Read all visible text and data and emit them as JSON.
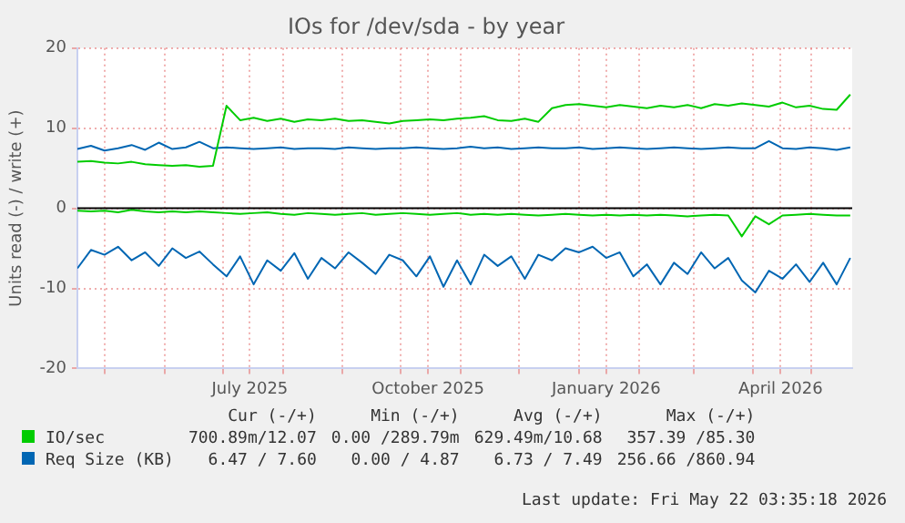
{
  "chart_data": {
    "type": "line",
    "title": "IOs for /dev/sda - by year",
    "ylabel": "Units read (-) / write (+)",
    "x": [
      "2025-04-17",
      "2025-04-24",
      "2025-05-01",
      "2025-05-08",
      "2025-05-15",
      "2025-05-22",
      "2025-05-29",
      "2025-06-05",
      "2025-06-12",
      "2025-06-19",
      "2025-06-26",
      "2025-07-03",
      "2025-07-10",
      "2025-07-17",
      "2025-07-24",
      "2025-07-31",
      "2025-08-07",
      "2025-08-14",
      "2025-08-21",
      "2025-08-28",
      "2025-09-04",
      "2025-09-11",
      "2025-09-18",
      "2025-09-25",
      "2025-10-02",
      "2025-10-09",
      "2025-10-16",
      "2025-10-23",
      "2025-10-30",
      "2025-11-06",
      "2025-11-13",
      "2025-11-20",
      "2025-11-27",
      "2025-12-04",
      "2025-12-11",
      "2025-12-18",
      "2025-12-25",
      "2026-01-01",
      "2026-01-08",
      "2026-01-15",
      "2026-01-22",
      "2026-01-29",
      "2026-02-05",
      "2026-02-12",
      "2026-02-19",
      "2026-02-26",
      "2026-03-05",
      "2026-03-12",
      "2026-03-19",
      "2026-03-26",
      "2026-04-02",
      "2026-04-09",
      "2026-04-16",
      "2026-04-23",
      "2026-04-30",
      "2026-05-07",
      "2026-05-14",
      "2026-05-21"
    ],
    "xlim": [
      "2025-04-17",
      "2026-05-22"
    ],
    "xticks": [
      {
        "value": "2025-05-01",
        "label": null
      },
      {
        "value": "2025-06-01",
        "label": null
      },
      {
        "value": "2025-07-01",
        "label": null
      },
      {
        "value": "2025-07-15",
        "label": "July 2025"
      },
      {
        "value": "2025-08-01",
        "label": null
      },
      {
        "value": "2025-09-01",
        "label": null
      },
      {
        "value": "2025-10-01",
        "label": null
      },
      {
        "value": "2025-10-15",
        "label": "October 2025"
      },
      {
        "value": "2025-11-01",
        "label": null
      },
      {
        "value": "2025-12-01",
        "label": null
      },
      {
        "value": "2026-01-01",
        "label": null
      },
      {
        "value": "2026-01-15",
        "label": "January 2026"
      },
      {
        "value": "2026-02-01",
        "label": null
      },
      {
        "value": "2026-03-01",
        "label": null
      },
      {
        "value": "2026-04-01",
        "label": null
      },
      {
        "value": "2026-04-15",
        "label": "April 2026"
      },
      {
        "value": "2026-05-01",
        "label": null
      }
    ],
    "ylim": [
      -20,
      20
    ],
    "yticks": [
      -20,
      -10,
      0,
      10,
      20
    ],
    "grid": true,
    "legend": "bottom",
    "marker": "none",
    "line_style": "solid",
    "ref_lines": [
      {
        "axis": "y",
        "value": 0,
        "color": "#000000"
      }
    ],
    "series": [
      {
        "name": "IO/sec",
        "color": "#00cc00",
        "values": [
          5.8,
          5.9,
          5.7,
          5.6,
          5.8,
          5.5,
          5.4,
          5.3,
          5.4,
          5.2,
          5.3,
          12.8,
          11.0,
          11.3,
          10.9,
          11.2,
          10.8,
          11.1,
          11.0,
          11.2,
          10.9,
          11.0,
          10.8,
          10.6,
          10.9,
          11.0,
          11.1,
          11.0,
          11.2,
          11.3,
          11.5,
          11.0,
          10.9,
          11.2,
          10.8,
          12.5,
          12.9,
          13.0,
          12.8,
          12.6,
          12.9,
          12.7,
          12.5,
          12.8,
          12.6,
          12.9,
          12.5,
          13.0,
          12.8,
          13.1,
          12.9,
          12.7,
          13.2,
          12.6,
          12.8,
          12.4,
          12.3,
          14.2
        ]
      },
      {
        "color": "#00cc00",
        "values": [
          -0.3,
          -0.4,
          -0.3,
          -0.5,
          -0.2,
          -0.4,
          -0.5,
          -0.4,
          -0.5,
          -0.4,
          -0.5,
          -0.6,
          -0.7,
          -0.6,
          -0.5,
          -0.7,
          -0.8,
          -0.6,
          -0.7,
          -0.8,
          -0.7,
          -0.6,
          -0.8,
          -0.7,
          -0.6,
          -0.7,
          -0.8,
          -0.7,
          -0.6,
          -0.8,
          -0.7,
          -0.8,
          -0.7,
          -0.8,
          -0.9,
          -0.8,
          -0.7,
          -0.8,
          -0.9,
          -0.8,
          -0.9,
          -0.8,
          -0.9,
          -0.8,
          -0.9,
          -1.0,
          -0.9,
          -0.8,
          -0.9,
          -3.5,
          -1.0,
          -2.0,
          -0.9,
          -0.8,
          -0.7,
          -0.8,
          -0.9,
          -0.9
        ]
      },
      {
        "name": "Req Size (KB)",
        "color": "#0066b3",
        "values": [
          7.4,
          7.8,
          7.2,
          7.5,
          7.9,
          7.3,
          8.2,
          7.4,
          7.6,
          8.3,
          7.5,
          7.6,
          7.5,
          7.4,
          7.5,
          7.6,
          7.4,
          7.5,
          7.5,
          7.4,
          7.6,
          7.5,
          7.4,
          7.5,
          7.5,
          7.6,
          7.5,
          7.4,
          7.5,
          7.7,
          7.5,
          7.6,
          7.4,
          7.5,
          7.6,
          7.5,
          7.5,
          7.6,
          7.4,
          7.5,
          7.6,
          7.5,
          7.4,
          7.5,
          7.6,
          7.5,
          7.4,
          7.5,
          7.6,
          7.5,
          7.5,
          8.4,
          7.5,
          7.4,
          7.6,
          7.5,
          7.3,
          7.6
        ]
      },
      {
        "color": "#0066b3",
        "values": [
          -7.5,
          -5.2,
          -5.8,
          -4.8,
          -6.5,
          -5.5,
          -7.2,
          -5.0,
          -6.2,
          -5.4,
          -7.0,
          -8.5,
          -6.0,
          -9.5,
          -6.5,
          -7.8,
          -5.6,
          -8.8,
          -6.2,
          -7.5,
          -5.5,
          -6.8,
          -8.2,
          -5.8,
          -6.5,
          -8.5,
          -6.0,
          -9.8,
          -6.5,
          -9.5,
          -5.8,
          -7.2,
          -6.0,
          -8.8,
          -5.8,
          -6.5,
          -5.0,
          -5.5,
          -4.8,
          -6.2,
          -5.5,
          -8.5,
          -7.0,
          -9.5,
          -6.8,
          -8.2,
          -5.5,
          -7.5,
          -6.2,
          -9.0,
          -10.5,
          -7.8,
          -8.8,
          -7.0,
          -9.2,
          -6.8,
          -9.5,
          -6.2
        ]
      }
    ],
    "annotations": [
      "Cur (-/+)",
      "Min (-/+)",
      "Avg (-/+)",
      "Max (-/+)",
      "700.89m/12.07",
      "0.00 /289.79m",
      "629.49m/10.68",
      "357.39 /85.30",
      "6.47 / 7.60",
      "0.00 / 4.87",
      "6.73 / 7.49",
      "256.66 /860.94",
      "Last update: Fri May 22 03:35:18 2026"
    ]
  }
}
